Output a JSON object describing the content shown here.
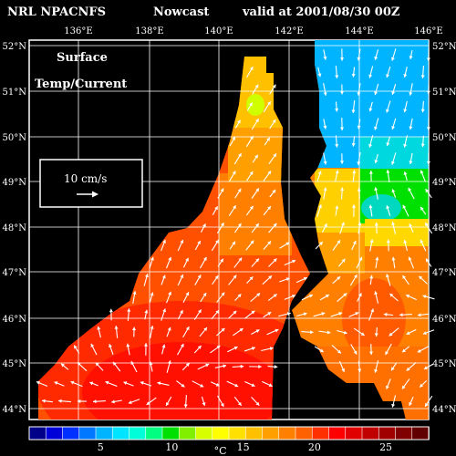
{
  "header": {
    "model": "NRL NPACNFS",
    "product": "Nowcast",
    "valid": "valid at 2001/08/30 00Z"
  },
  "map": {
    "label_line1": "Surface",
    "label_line2": "Temp/Current",
    "lon_ticks": [
      "136°E",
      "138°E",
      "140°E",
      "142°E",
      "144°E",
      "146°E"
    ],
    "lat_ticks": [
      "52°N",
      "51°N",
      "50°N",
      "49°N",
      "48°N",
      "47°N",
      "46°N",
      "45°N",
      "44°N"
    ],
    "reference_vector": {
      "text": "10 cm/s"
    },
    "land_color": "#000000",
    "grid_color": "#ffffff",
    "arrow_color": "#ffffff"
  },
  "colorbar": {
    "unit": "°C",
    "ticks": [
      "5",
      "10",
      "15",
      "20",
      "25"
    ],
    "tick_values": [
      5,
      10,
      15,
      20,
      25
    ],
    "range": [
      0,
      28
    ],
    "colors": [
      "#000088",
      "#0000d8",
      "#0030ff",
      "#0078ff",
      "#00b4ff",
      "#00e4ff",
      "#00ffd8",
      "#00ff80",
      "#00e000",
      "#80f000",
      "#d8ff00",
      "#ffff00",
      "#ffe000",
      "#ffc000",
      "#ffa000",
      "#ff8000",
      "#ff6000",
      "#ff3000",
      "#ff0000",
      "#e00000",
      "#c00000",
      "#a00000",
      "#800000",
      "#600000"
    ]
  }
}
